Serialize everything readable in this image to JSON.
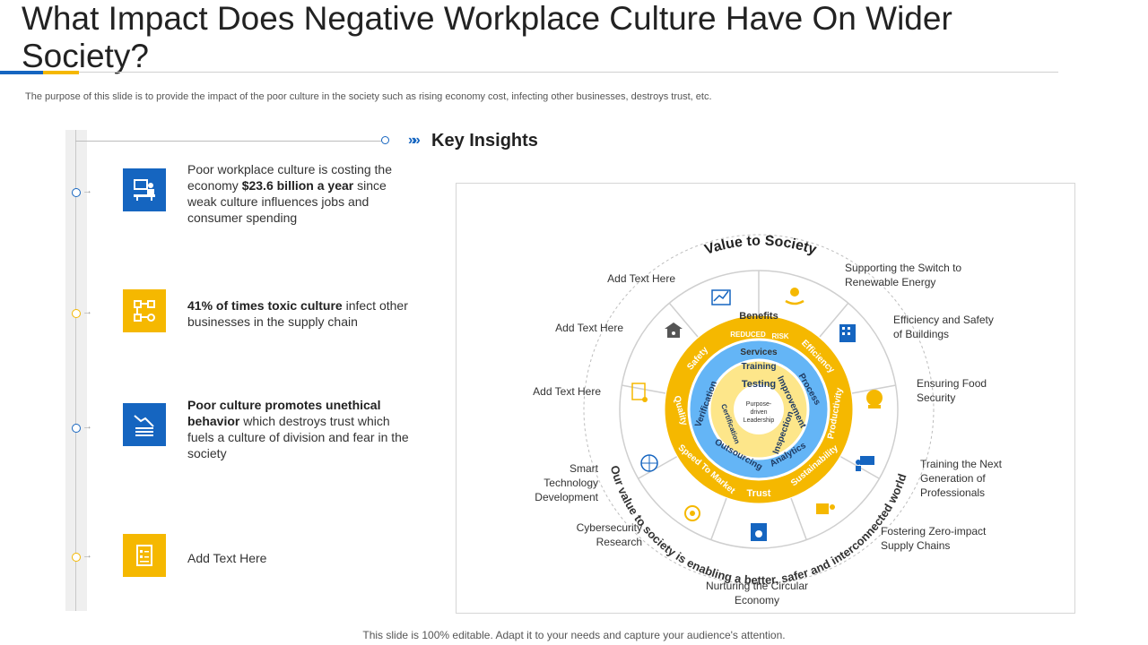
{
  "title": "What Impact Does Negative Workplace Culture Have On Wider Society?",
  "subtitle": "The purpose of this slide is to provide the impact of the poor culture in the society such as rising economy cost, infecting other businesses, destroys trust, etc.",
  "key_insights": "Key Insights",
  "items": [
    {
      "icon": "presentation-desk-icon",
      "color": "#1565c0",
      "pre": "Poor workplace culture is costing the economy ",
      "bold": "$23.6 billion a year",
      "post": " since weak culture influences jobs and consumer spending"
    },
    {
      "icon": "network-workflow-icon",
      "color": "#f5b800",
      "pre": "",
      "bold": "41% of times toxic culture",
      "post": " infect other businesses in the supply chain"
    },
    {
      "icon": "declining-chart-icon",
      "color": "#1565c0",
      "pre": "",
      "bold": "Poor culture promotes unethical behavior",
      "post": " which destroys trust which fuels a culture of division and fear in the society"
    },
    {
      "icon": "document-list-icon",
      "color": "#f5b800",
      "pre": "Add Text Here",
      "bold": "",
      "post": ""
    }
  ],
  "wheel": {
    "outer_title": "Value to Society",
    "outer_arc_text": "Our value to society is enabling a better, safer and interconnected world",
    "benefits_label": "Benefits",
    "benefits": [
      "Safety",
      "REDUCED",
      "RISK",
      "Efficiency",
      "Productivity",
      "Sustainability",
      "Trust",
      "Speed To Market",
      "Quality"
    ],
    "services_label": "Services",
    "services": [
      "Training",
      "Process",
      "Improvement",
      "Inspection",
      "Analytics",
      "Outsourcing",
      "Verification",
      "Testing",
      "Certification"
    ],
    "center": [
      "Purpose-",
      "driven",
      "Leadership"
    ]
  },
  "labels": {
    "top_left": "Add Text Here",
    "left_upper": "Add Text Here",
    "left_mid": "Add Text Here",
    "smart_tech": "Smart Technology Development",
    "cybersecurity": "Cybersecurity Research",
    "circular": "Nurturing the Circular Economy",
    "renewable": "Supporting the Switch to Renewable  Energy",
    "efficiency": "Efficiency and Safety of Buildings",
    "food": "Ensuring Food Security",
    "training": "Training  the Next Generation  of Professionals",
    "zero_impact": "Fostering Zero-impact Supply Chains"
  },
  "colors": {
    "blue": "#1565c0",
    "yellow": "#f5b800",
    "light_blue": "#64b5f6",
    "pale_yellow": "#fde68a"
  },
  "footer": "This slide is 100% editable. Adapt it to your needs and capture your audience's attention."
}
